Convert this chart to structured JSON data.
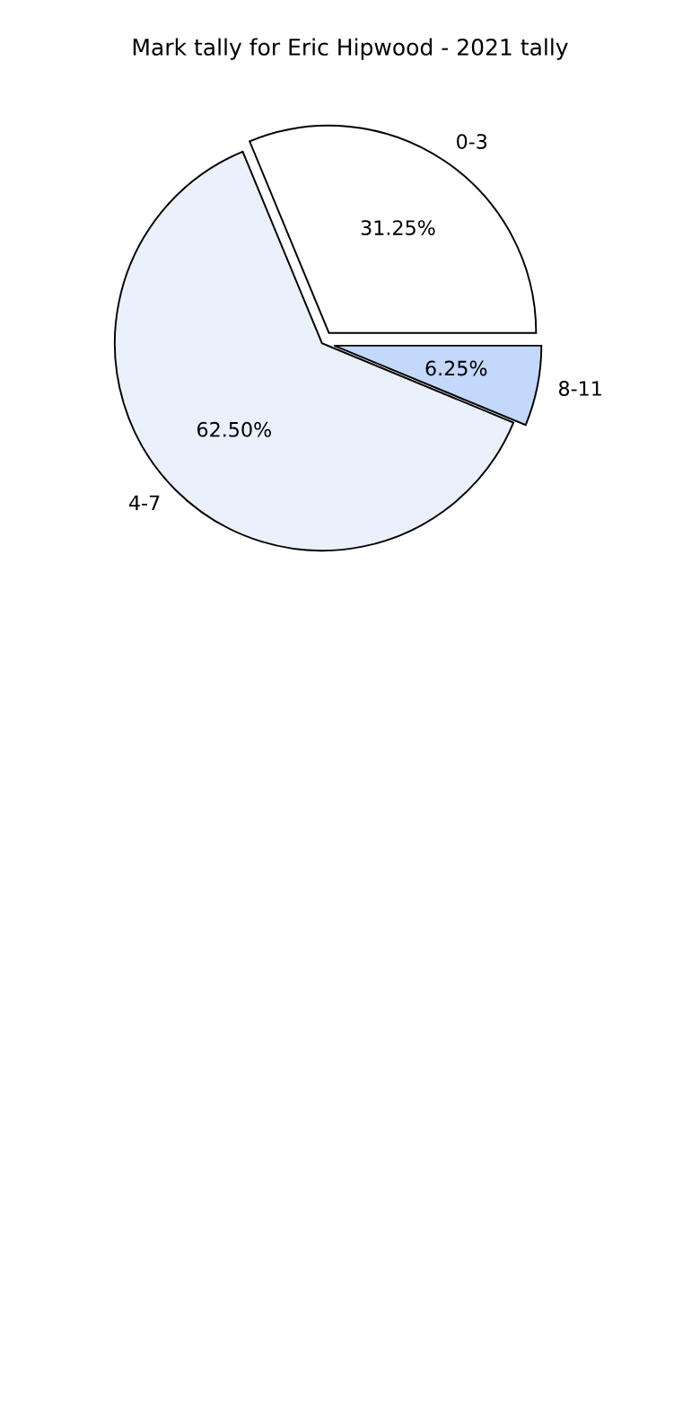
{
  "chart_data": {
    "type": "pie",
    "title": "Mark tally for Eric Hipwood - 2021 tally",
    "categories": [
      "0-3",
      "4-7",
      "8-11"
    ],
    "values": [
      31.25,
      62.5,
      6.25
    ],
    "value_labels": [
      "31.25%",
      "62.50%",
      "6.25%"
    ],
    "colors": [
      "#ffffff",
      "#eaf1fd",
      "#c4d8fb"
    ]
  }
}
